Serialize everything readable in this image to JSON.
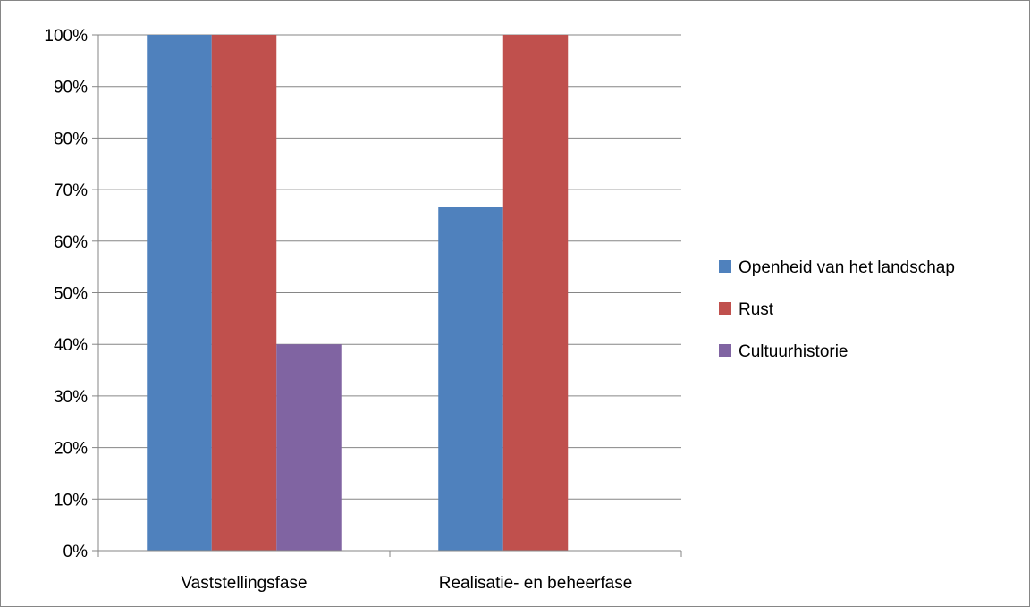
{
  "chart_data": {
    "type": "bar",
    "title": "",
    "xlabel": "",
    "ylabel": "",
    "categories": [
      "Vaststellingsfase",
      "Realisatie- en beheerfase"
    ],
    "series": [
      {
        "name": "Openheid van het landschap",
        "color": "#4F81BD",
        "values": [
          100,
          66.7
        ]
      },
      {
        "name": "Rust",
        "color": "#C0504D",
        "values": [
          100,
          100
        ]
      },
      {
        "name": "Cultuurhistorie",
        "color": "#8064A2",
        "values": [
          40,
          0
        ]
      }
    ],
    "ylim": [
      0,
      100
    ],
    "yticks": [
      "0%",
      "10%",
      "20%",
      "30%",
      "40%",
      "50%",
      "60%",
      "70%",
      "80%",
      "90%",
      "100%"
    ],
    "grid": true,
    "legend_position": "right"
  }
}
